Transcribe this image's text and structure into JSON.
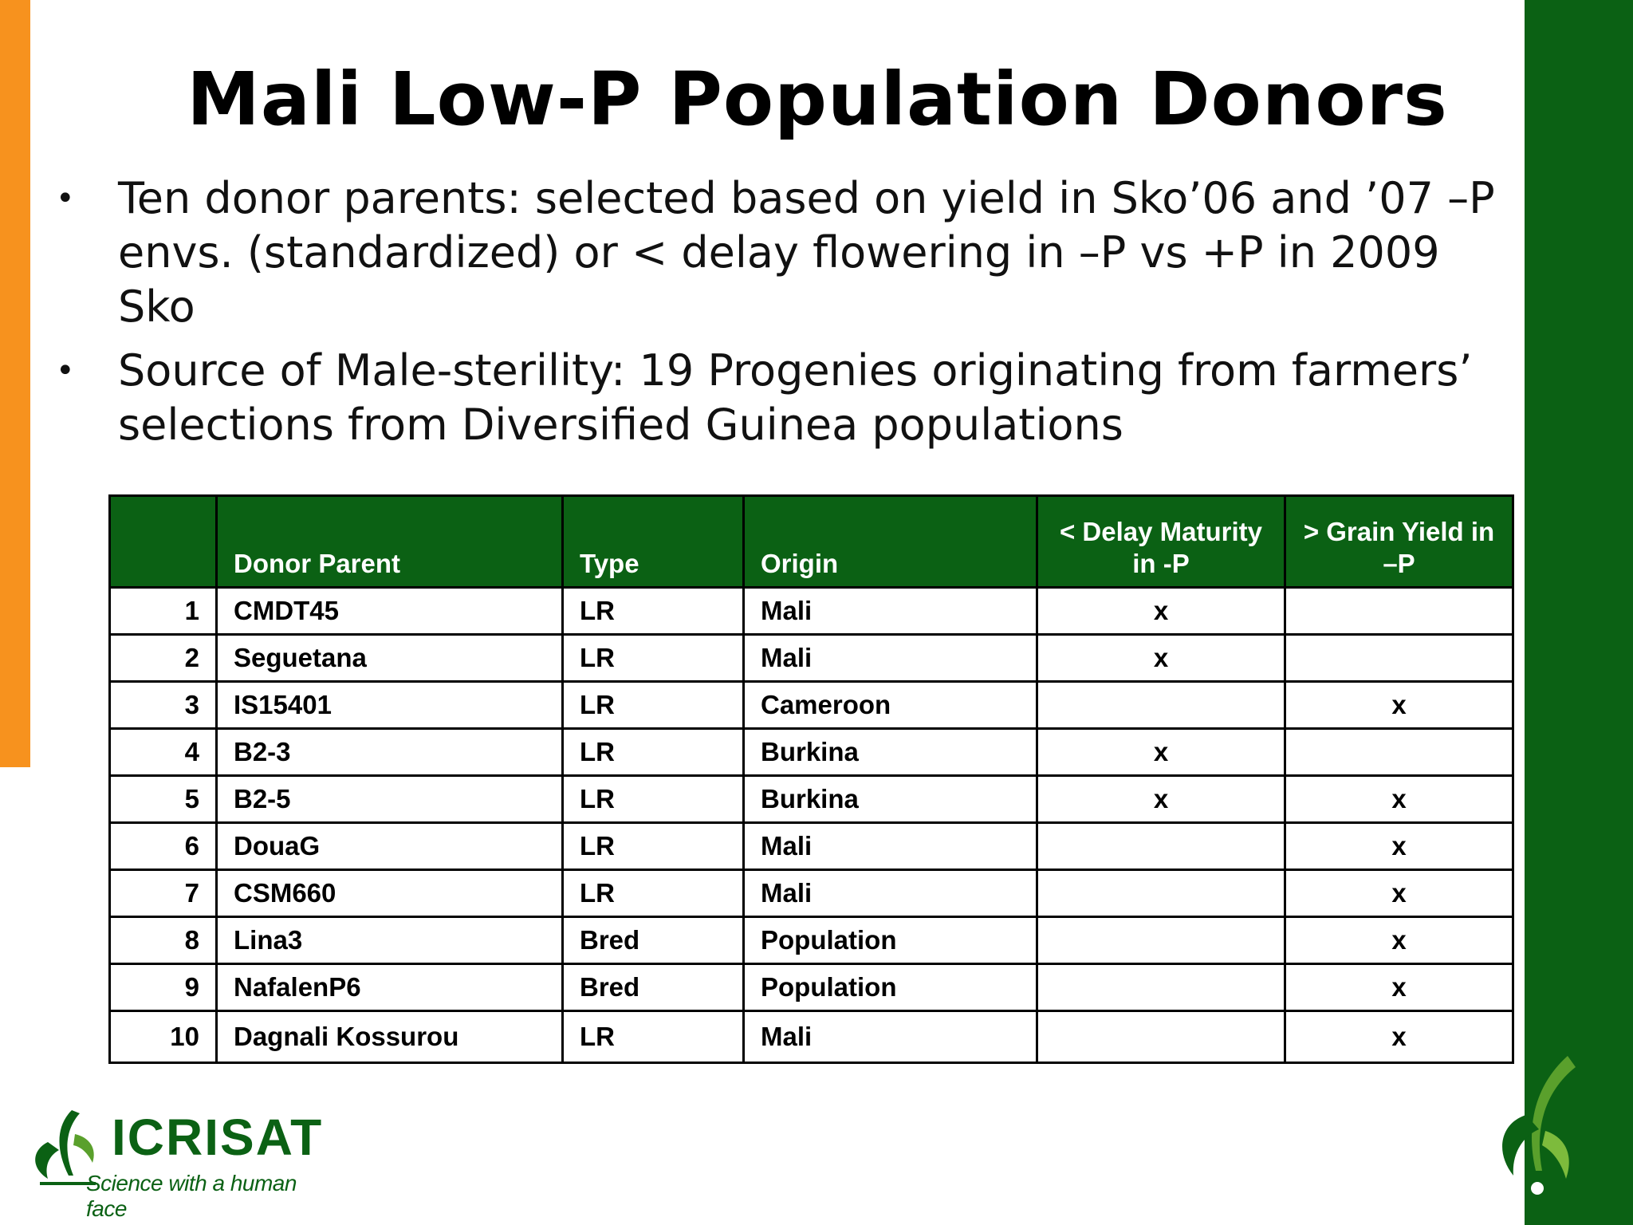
{
  "title": "Mali Low-P Population Donors",
  "bullets": [
    "Ten donor parents: selected based on yield in Sko’06 and ’07 –P envs. (standardized) or < delay flowering in –P vs +P in 2009 Sko",
    "Source of Male-sterility: 19 Progenies originating from farmers’ selections from Diversified Guinea populations"
  ],
  "table": {
    "headers": [
      "",
      "Donor Parent",
      "Type",
      "Origin",
      "< Delay Maturity in -P",
      "> Grain Yield in –P"
    ],
    "rows": [
      [
        "1",
        "CMDT45",
        "LR",
        "Mali",
        "x",
        ""
      ],
      [
        "2",
        "Seguetana",
        "LR",
        "Mali",
        "x",
        ""
      ],
      [
        "3",
        "IS15401",
        "LR",
        "Cameroon",
        "",
        "x"
      ],
      [
        "4",
        "B2-3",
        "LR",
        "Burkina",
        "x",
        ""
      ],
      [
        "5",
        "B2-5",
        "LR",
        "Burkina",
        "x",
        "x"
      ],
      [
        "6",
        "DouaG",
        "LR",
        "Mali",
        "",
        "x"
      ],
      [
        "7",
        "CSM660",
        "LR",
        "Mali",
        "",
        "x"
      ],
      [
        "8",
        "Lina3",
        "Bred",
        "Population",
        "",
        "x"
      ],
      [
        "9",
        "NafalenP6",
        "Bred",
        "Population",
        "",
        "x"
      ],
      [
        "10",
        "Dagnali Kossurou",
        "LR",
        "Mali",
        "",
        "x"
      ]
    ]
  },
  "logo": {
    "name": "ICRISAT",
    "tagline": "Science with a human face"
  },
  "colors": {
    "accent_orange": "#f7921e",
    "brand_green": "#0b6114"
  },
  "icons": {
    "logo_mark": "leaf-sheaf-icon"
  }
}
